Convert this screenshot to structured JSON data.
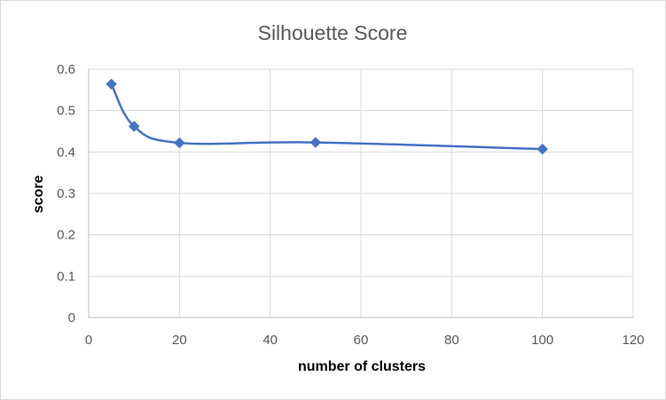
{
  "chart_data": {
    "type": "scatter",
    "title": "Silhouette Score",
    "xlabel": "number of clusters",
    "ylabel": "score",
    "xlim": [
      0,
      120
    ],
    "ylim": [
      0,
      0.6
    ],
    "xticks": [
      0,
      20,
      40,
      60,
      80,
      100,
      120
    ],
    "yticks": [
      0,
      0.1,
      0.2,
      0.3,
      0.4,
      0.5,
      0.6
    ],
    "grid": true,
    "smooth_line": true,
    "series": [
      {
        "name": "Silhouette Score",
        "color": "#4472c4",
        "marker": "diamond",
        "x": [
          5,
          10,
          20,
          50,
          100
        ],
        "y": [
          0.564,
          0.462,
          0.422,
          0.423,
          0.407
        ]
      }
    ]
  }
}
